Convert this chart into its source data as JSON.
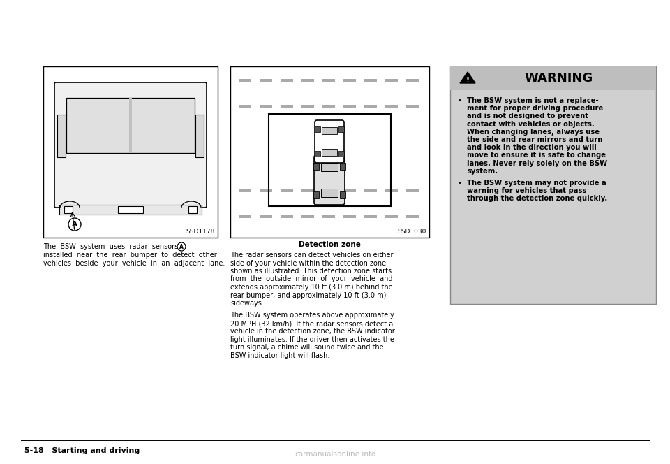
{
  "page_bg": "#ffffff",
  "warning_box_bg": "#d0d0d0",
  "warning_header_bg": "#bebebe",
  "warning_title": "WARNING",
  "left_caption_line1": "The  BSW  system  uses  radar  sensors",
  "left_caption_circle": "A",
  "left_caption_line2": "installed  near  the  rear  bumper  to  detect  other",
  "left_caption_line3": "vehicles  beside  your  vehicle  in  an  adjacent  lane.",
  "left_image_label": "SSD1178",
  "right_image_label": "SSD1030",
  "detection_zone_label": "Detection zone",
  "right_para1_lines": [
    "The radar sensors can detect vehicles on either",
    "side of your vehicle within the detection zone",
    "shown as illustrated. This detection zone starts",
    "from  the  outside  mirror  of  your  vehicle  and",
    "extends approximately 10 ft (3.0 m) behind the",
    "rear bumper, and approximately 10 ft (3.0 m)",
    "sideways."
  ],
  "right_para2_lines": [
    "The BSW system operates above approximately",
    "20 MPH (32 km/h). If the radar sensors detect a",
    "vehicle in the detection zone, the BSW indicator",
    "light illuminates. If the driver then activates the",
    "turn signal, a chime will sound twice and the",
    "BSW indicator light will flash."
  ],
  "warning_bullet1_lines": [
    "The BSW system is not a replace-",
    "ment for proper driving procedure",
    "and is not designed to prevent",
    "contact with vehicles or objects.",
    "When changing lanes, always use",
    "the side and rear mirrors and turn",
    "and look in the direction you will",
    "move to ensure it is safe to change",
    "lanes. Never rely solely on the BSW",
    "system."
  ],
  "warning_bullet2_lines": [
    "The BSW system may not provide a",
    "warning for vehicles that pass",
    "through the detection zone quickly."
  ],
  "footer_text": "5-18   Starting and driving",
  "watermark": "carmanualsonline.info"
}
